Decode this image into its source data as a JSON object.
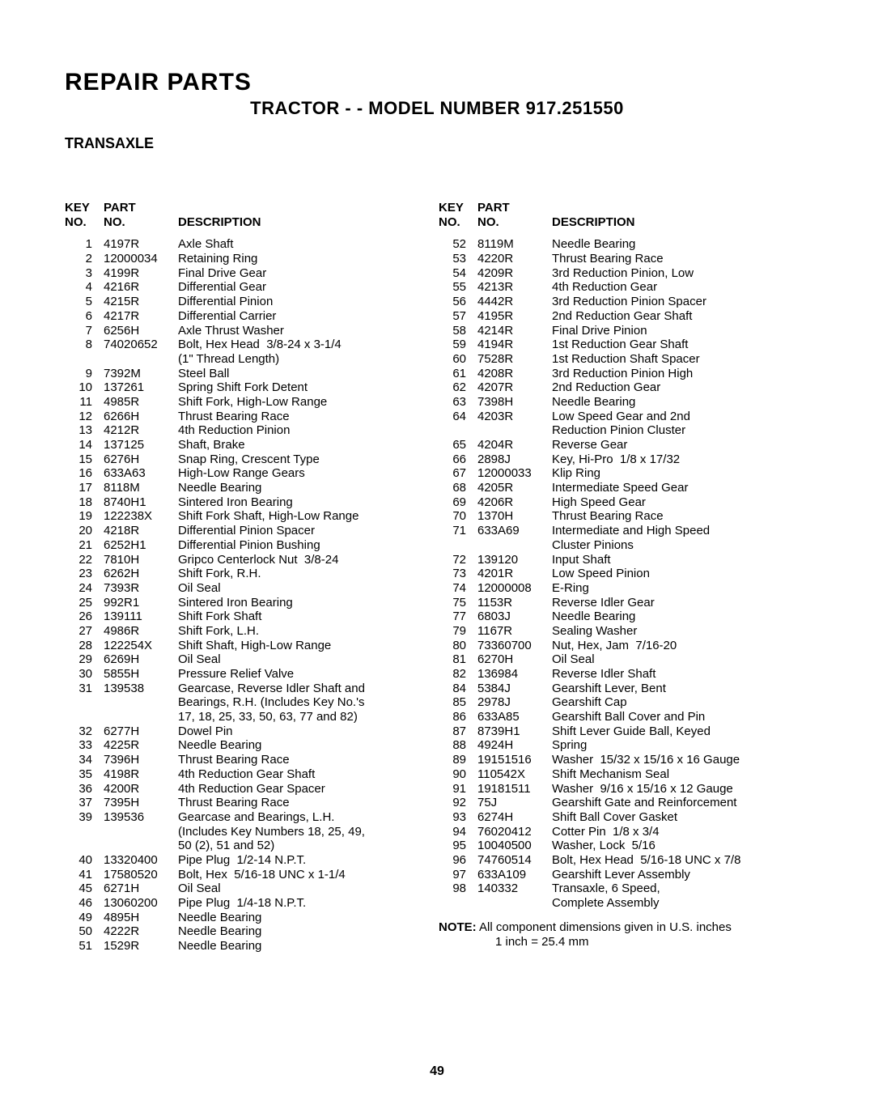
{
  "header": {
    "title": "REPAIR PARTS",
    "subtitle": "TRACTOR - - MODEL NUMBER 917.251550",
    "section": "TRANSAXLE"
  },
  "columns": {
    "header": {
      "key_line1": "KEY",
      "key_line2": "NO.",
      "part_line1": "PART",
      "part_line2": "NO.",
      "desc": "DESCRIPTION"
    }
  },
  "left": [
    {
      "k": "1",
      "p": "4197R",
      "d": "Axle Shaft"
    },
    {
      "k": "2",
      "p": "12000034",
      "d": "Retaining Ring"
    },
    {
      "k": "3",
      "p": "4199R",
      "d": "Final Drive Gear"
    },
    {
      "k": "4",
      "p": "4216R",
      "d": "Differential Gear"
    },
    {
      "k": "5",
      "p": "4215R",
      "d": "Differential Pinion"
    },
    {
      "k": "6",
      "p": "4217R",
      "d": "Differential Carrier"
    },
    {
      "k": "7",
      "p": "6256H",
      "d": "Axle Thrust Washer"
    },
    {
      "k": "8",
      "p": "74020652",
      "d": "Bolt, Hex Head  3/8-24 x 3-1/4\n(1\" Thread Length)"
    },
    {
      "k": "9",
      "p": "7392M",
      "d": "Steel Ball"
    },
    {
      "k": "10",
      "p": "137261",
      "d": "Spring Shift Fork Detent"
    },
    {
      "k": "11",
      "p": "4985R",
      "d": "Shift Fork, High-Low Range"
    },
    {
      "k": "12",
      "p": "6266H",
      "d": "Thrust Bearing Race"
    },
    {
      "k": "13",
      "p": "4212R",
      "d": "4th Reduction Pinion"
    },
    {
      "k": "14",
      "p": "137125",
      "d": "Shaft, Brake"
    },
    {
      "k": "15",
      "p": "6276H",
      "d": "Snap Ring, Crescent Type"
    },
    {
      "k": "16",
      "p": "633A63",
      "d": "High-Low Range Gears"
    },
    {
      "k": "17",
      "p": "8118M",
      "d": "Needle Bearing"
    },
    {
      "k": "18",
      "p": "8740H1",
      "d": "Sintered Iron Bearing"
    },
    {
      "k": "19",
      "p": "122238X",
      "d": "Shift Fork Shaft, High-Low Range"
    },
    {
      "k": "20",
      "p": "4218R",
      "d": "Differential Pinion Spacer"
    },
    {
      "k": "21",
      "p": "6252H1",
      "d": "Differential Pinion Bushing"
    },
    {
      "k": "22",
      "p": "7810H",
      "d": "Gripco Centerlock Nut  3/8-24"
    },
    {
      "k": "23",
      "p": "6262H",
      "d": "Shift Fork, R.H."
    },
    {
      "k": "24",
      "p": "7393R",
      "d": "Oil Seal"
    },
    {
      "k": "25",
      "p": "992R1",
      "d": "Sintered Iron Bearing"
    },
    {
      "k": "26",
      "p": "139111",
      "d": "Shift Fork Shaft"
    },
    {
      "k": "27",
      "p": "4986R",
      "d": "Shift Fork, L.H."
    },
    {
      "k": "28",
      "p": "122254X",
      "d": "Shift Shaft, High-Low Range"
    },
    {
      "k": "29",
      "p": "6269H",
      "d": "Oil Seal"
    },
    {
      "k": "30",
      "p": "5855H",
      "d": "Pressure Relief Valve"
    },
    {
      "k": "31",
      "p": "139538",
      "d": "Gearcase, Reverse Idler Shaft and\nBearings, R.H. (Includes Key No.'s\n17, 18, 25, 33, 50, 63, 77 and 82)"
    },
    {
      "k": "32",
      "p": "6277H",
      "d": "Dowel Pin"
    },
    {
      "k": "33",
      "p": "4225R",
      "d": "Needle Bearing"
    },
    {
      "k": "34",
      "p": "7396H",
      "d": "Thrust Bearing Race"
    },
    {
      "k": "35",
      "p": "4198R",
      "d": "4th Reduction Gear Shaft"
    },
    {
      "k": "36",
      "p": "4200R",
      "d": "4th Reduction Gear Spacer"
    },
    {
      "k": "37",
      "p": "7395H",
      "d": "Thrust Bearing Race"
    },
    {
      "k": "39",
      "p": "139536",
      "d": "Gearcase and Bearings, L.H.\n(Includes Key Numbers 18, 25, 49,\n50 (2), 51 and 52)"
    },
    {
      "k": "40",
      "p": "13320400",
      "d": "Pipe Plug  1/2-14 N.P.T."
    },
    {
      "k": "41",
      "p": "17580520",
      "d": "Bolt, Hex  5/16-18 UNC x 1-1/4"
    },
    {
      "k": "45",
      "p": "6271H",
      "d": "Oil Seal"
    },
    {
      "k": "46",
      "p": "13060200",
      "d": "Pipe Plug  1/4-18 N.P.T."
    },
    {
      "k": "49",
      "p": "4895H",
      "d": "Needle Bearing"
    },
    {
      "k": "50",
      "p": "4222R",
      "d": "Needle Bearing"
    },
    {
      "k": "51",
      "p": "1529R",
      "d": "Needle Bearing"
    }
  ],
  "right": [
    {
      "k": "52",
      "p": "8119M",
      "d": "Needle Bearing"
    },
    {
      "k": "53",
      "p": "4220R",
      "d": "Thrust Bearing Race"
    },
    {
      "k": "54",
      "p": "4209R",
      "d": "3rd Reduction Pinion, Low"
    },
    {
      "k": "55",
      "p": "4213R",
      "d": "4th Reduction Gear"
    },
    {
      "k": "56",
      "p": "4442R",
      "d": "3rd Reduction Pinion Spacer"
    },
    {
      "k": "57",
      "p": "4195R",
      "d": "2nd Reduction Gear Shaft"
    },
    {
      "k": "58",
      "p": "4214R",
      "d": "Final Drive Pinion"
    },
    {
      "k": "59",
      "p": "4194R",
      "d": "1st Reduction Gear Shaft"
    },
    {
      "k": "60",
      "p": "7528R",
      "d": "1st Reduction Shaft Spacer"
    },
    {
      "k": "61",
      "p": "4208R",
      "d": "3rd Reduction Pinion High"
    },
    {
      "k": "62",
      "p": "4207R",
      "d": "2nd Reduction Gear"
    },
    {
      "k": "63",
      "p": "7398H",
      "d": "Needle Bearing"
    },
    {
      "k": "64",
      "p": "4203R",
      "d": "Low Speed Gear and 2nd\nReduction Pinion Cluster"
    },
    {
      "k": "65",
      "p": "4204R",
      "d": "Reverse Gear"
    },
    {
      "k": "66",
      "p": "2898J",
      "d": "Key, Hi-Pro  1/8 x 17/32"
    },
    {
      "k": "67",
      "p": "12000033",
      "d": "Klip Ring"
    },
    {
      "k": "68",
      "p": "4205R",
      "d": "Intermediate Speed Gear"
    },
    {
      "k": "69",
      "p": "4206R",
      "d": "High Speed Gear"
    },
    {
      "k": "70",
      "p": "1370H",
      "d": "Thrust Bearing Race"
    },
    {
      "k": "71",
      "p": "633A69",
      "d": "Intermediate and High Speed\nCluster Pinions"
    },
    {
      "k": "72",
      "p": "139120",
      "d": "Input Shaft"
    },
    {
      "k": "73",
      "p": "4201R",
      "d": "Low Speed Pinion"
    },
    {
      "k": "74",
      "p": "12000008",
      "d": "E-Ring"
    },
    {
      "k": "75",
      "p": "1153R",
      "d": "Reverse Idler Gear"
    },
    {
      "k": "77",
      "p": "6803J",
      "d": "Needle Bearing"
    },
    {
      "k": "79",
      "p": "1167R",
      "d": "Sealing Washer"
    },
    {
      "k": "80",
      "p": "73360700",
      "d": "Nut, Hex, Jam  7/16-20"
    },
    {
      "k": "81",
      "p": "6270H",
      "d": "Oil Seal"
    },
    {
      "k": "82",
      "p": "136984",
      "d": "Reverse Idler Shaft"
    },
    {
      "k": "84",
      "p": "5384J",
      "d": "Gearshift Lever, Bent"
    },
    {
      "k": "85",
      "p": "2978J",
      "d": "Gearshift Cap"
    },
    {
      "k": "86",
      "p": "633A85",
      "d": "Gearshift Ball Cover and Pin"
    },
    {
      "k": "87",
      "p": "8739H1",
      "d": "Shift Lever Guide Ball, Keyed"
    },
    {
      "k": "88",
      "p": "4924H",
      "d": "Spring"
    },
    {
      "k": "89",
      "p": "19151516",
      "d": "Washer  15/32 x 15/16 x 16 Gauge"
    },
    {
      "k": "90",
      "p": "110542X",
      "d": "Shift Mechanism Seal"
    },
    {
      "k": "91",
      "p": "19181511",
      "d": "Washer  9/16 x 15/16 x 12 Gauge"
    },
    {
      "k": "92",
      "p": "75J",
      "d": "Gearshift Gate and Reinforcement"
    },
    {
      "k": "93",
      "p": "6274H",
      "d": "Shift Ball Cover Gasket"
    },
    {
      "k": "94",
      "p": "76020412",
      "d": "Cotter Pin  1/8 x 3/4"
    },
    {
      "k": "95",
      "p": "10040500",
      "d": "Washer, Lock  5/16"
    },
    {
      "k": "96",
      "p": "74760514",
      "d": "Bolt, Hex Head  5/16-18 UNC x 7/8"
    },
    {
      "k": "97",
      "p": "633A109",
      "d": "Gearshift Lever Assembly"
    },
    {
      "k": "98",
      "p": "140332",
      "d": "Transaxle, 6 Speed,\nComplete Assembly"
    }
  ],
  "note": {
    "label": "NOTE:",
    "text1": "  All component dimensions given in U.S. inches",
    "text2": "1 inch = 25.4 mm"
  },
  "page_number": "49"
}
